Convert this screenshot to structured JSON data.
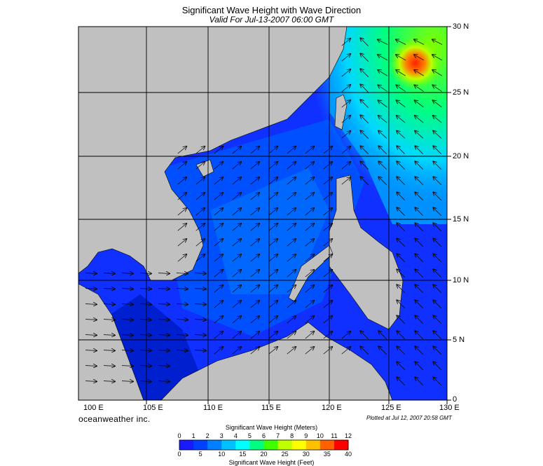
{
  "title": "Significant Wave Height with Wave Direction",
  "subtitle": "Valid For Jul-13-2007 06:00 GMT",
  "longitude_labels": [
    "100 E",
    "105 E",
    "110 E",
    "115 E",
    "120 E",
    "125 E",
    "130 E"
  ],
  "latitude_labels": [
    "30 N",
    "25 N",
    "20 N",
    "15 N",
    "10 N",
    "5 N",
    "0"
  ],
  "brand": "oceanweather inc.",
  "plotted_note": "Plotted at Jul 12, 2007 20:58 GMT",
  "legend": {
    "meters_title": "Significant Wave Height (Meters)",
    "meters_ticks": [
      "0",
      "1",
      "2",
      "3",
      "4",
      "5",
      "6",
      "7",
      "8",
      "9",
      "10",
      "11",
      "12"
    ],
    "feet_title": "Significant Wave Height (Feet)",
    "feet_ticks": [
      "0",
      "5",
      "10",
      "15",
      "20",
      "25",
      "30",
      "35",
      "40"
    ],
    "colors": [
      "#1a1aff",
      "#0040ff",
      "#0080ff",
      "#00c0ff",
      "#00ffff",
      "#00ff80",
      "#40ff00",
      "#c0ff00",
      "#ffff00",
      "#ffc000",
      "#ff6000",
      "#ff0000"
    ]
  },
  "colors": {
    "land": "#c0c0c0",
    "storm": "#ff2000"
  }
}
